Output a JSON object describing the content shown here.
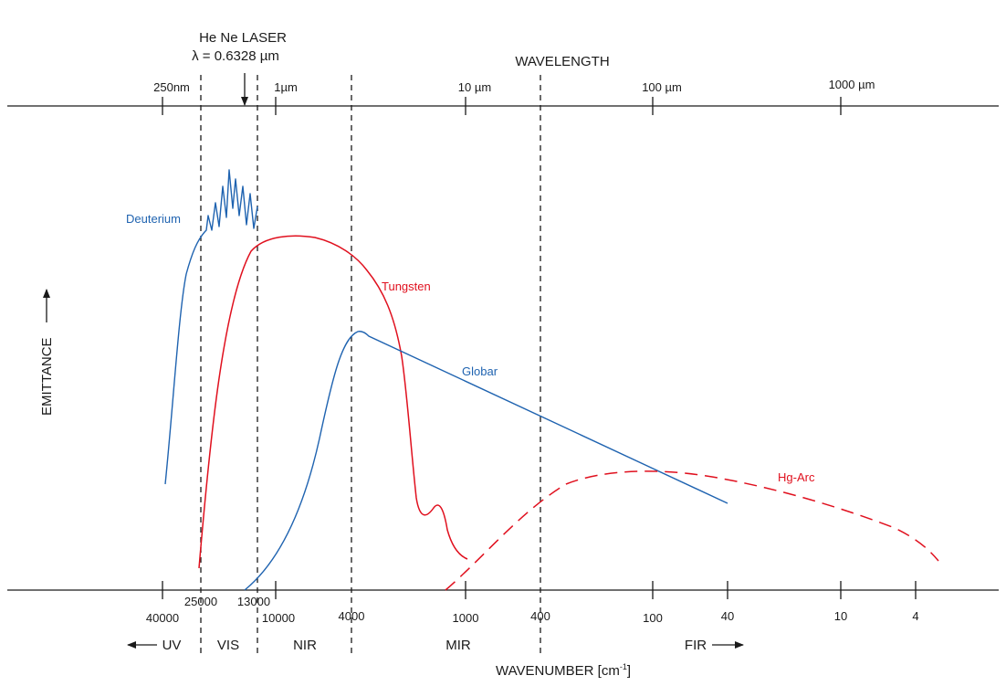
{
  "laser": {
    "name": "He Ne LASER",
    "wavelength": "λ = 0.6328 µm"
  },
  "top_axis": {
    "title": "WAVELENGTH",
    "ticks": [
      "250nm",
      "1µm",
      "10 µm",
      "100 µm",
      "1000 µm"
    ]
  },
  "bottom_axis": {
    "title": "WAVENUMBER [cm",
    "title_sup": "-1",
    "title_end": "]",
    "ticks": [
      "40000",
      "25000",
      "13000",
      "10000",
      "4000",
      "1000",
      "400",
      "100",
      "40",
      "10",
      "4"
    ]
  },
  "y_axis": {
    "title": "EMITTANCE"
  },
  "regions": [
    "UV",
    "VIS",
    "NIR",
    "MIR",
    "FIR"
  ],
  "colors": {
    "blue": "#1f63b0",
    "red": "#e0101e",
    "axis": "#1a1a1a"
  },
  "chart_data": {
    "type": "line",
    "series": [
      {
        "name": "Deuterium",
        "color": "#1f63b0",
        "style": "solid"
      },
      {
        "name": "Tungsten",
        "color": "#e0101e",
        "style": "solid"
      },
      {
        "name": "Globar",
        "color": "#1f63b0",
        "style": "solid"
      },
      {
        "name": "Hg-Arc",
        "color": "#e0101e",
        "style": "dashed"
      }
    ]
  }
}
